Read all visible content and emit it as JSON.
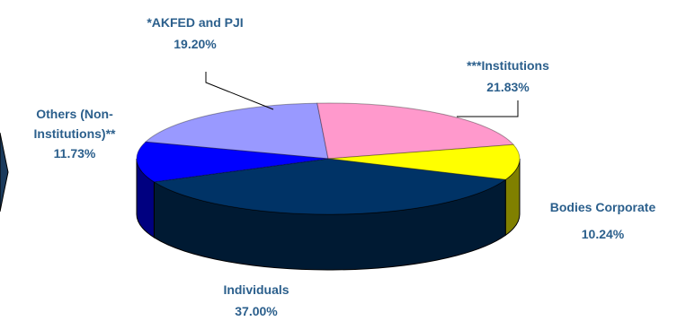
{
  "chart_data": {
    "type": "pie",
    "style": "3d-exploded-edge",
    "slices": [
      {
        "name": "*AKFED and PJI",
        "display": "19.20%",
        "value": 19.2,
        "top_color": "#9999ff",
        "side_color": "#4d4d80"
      },
      {
        "name": "***Institutions",
        "display": "21.83%",
        "value": 21.83,
        "top_color": "#ff99cc",
        "side_color": "#804d66"
      },
      {
        "name": "Bodies Corporate",
        "display": "10.24%",
        "value": 10.24,
        "top_color": "#ffff00",
        "side_color": "#808000"
      },
      {
        "name": "Individuals",
        "display": "37.00%",
        "value": 37.0,
        "top_color": "#003366",
        "side_color": "#001a33"
      },
      {
        "name": "Others (Non-Institutions)**",
        "name_line1": "Others (Non-",
        "name_line2": "Institutions)**",
        "display": "11.73%",
        "value": 11.73,
        "top_color": "#0000ff",
        "side_color": "#000080"
      }
    ]
  }
}
